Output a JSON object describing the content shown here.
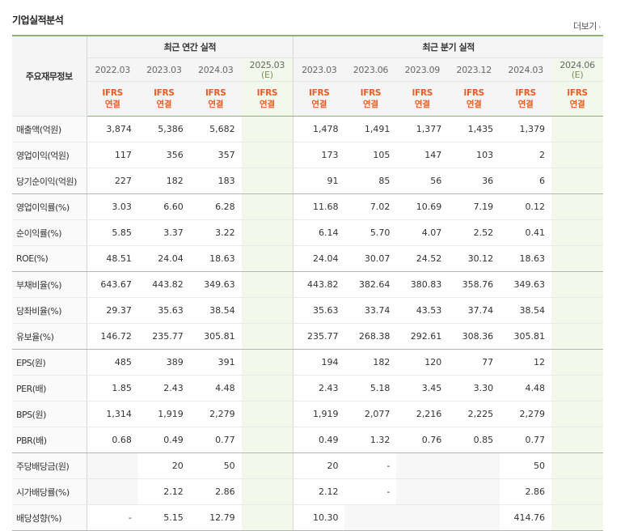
{
  "header": {
    "title": "기업실적분석",
    "more_label": "더보기",
    "more_chevron": "›"
  },
  "table": {
    "label_header": "주요재무정보",
    "groups": {
      "annual": "최근 연간 실적",
      "quarterly": "최근 분기 실적"
    },
    "periods": [
      {
        "date": "2022.03",
        "std1": "IFRS",
        "std2": "연결"
      },
      {
        "date": "2023.03",
        "std1": "IFRS",
        "std2": "연결"
      },
      {
        "date": "2024.03",
        "std1": "IFRS",
        "std2": "연결"
      },
      {
        "date": "2025.03",
        "est": "(E)",
        "std1": "IFRS",
        "std2": "연결"
      },
      {
        "date": "2023.03",
        "std1": "IFRS",
        "std2": "연결"
      },
      {
        "date": "2023.06",
        "std1": "IFRS",
        "std2": "연결"
      },
      {
        "date": "2023.09",
        "std1": "IFRS",
        "std2": "연결"
      },
      {
        "date": "2023.12",
        "std1": "IFRS",
        "std2": "연결"
      },
      {
        "date": "2024.03",
        "std1": "IFRS",
        "std2": "연결"
      },
      {
        "date": "2024.06",
        "est": "(E)",
        "std1": "IFRS",
        "std2": "연결"
      }
    ],
    "rows": [
      {
        "label": "매출액(억원)",
        "values": [
          "3,874",
          "5,386",
          "5,682",
          "",
          "1,478",
          "1,491",
          "1,377",
          "1,435",
          "1,379",
          ""
        ]
      },
      {
        "label": "영업이익(억원)",
        "values": [
          "117",
          "356",
          "357",
          "",
          "173",
          "105",
          "147",
          "103",
          "2",
          ""
        ]
      },
      {
        "label": "당기순이익(억원)",
        "values": [
          "227",
          "182",
          "183",
          "",
          "91",
          "85",
          "56",
          "36",
          "6",
          ""
        ]
      },
      {
        "label": "영업이익률(%)",
        "values": [
          "3.03",
          "6.60",
          "6.28",
          "",
          "11.68",
          "7.02",
          "10.69",
          "7.19",
          "0.12",
          ""
        ]
      },
      {
        "label": "순이익률(%)",
        "values": [
          "5.85",
          "3.37",
          "3.22",
          "",
          "6.14",
          "5.70",
          "4.07",
          "2.52",
          "0.41",
          ""
        ]
      },
      {
        "label": "ROE(%)",
        "values": [
          "48.51",
          "24.04",
          "18.63",
          "",
          "24.04",
          "30.07",
          "24.52",
          "30.12",
          "18.63",
          ""
        ]
      },
      {
        "label": "부채비율(%)",
        "values": [
          "643.67",
          "443.82",
          "349.63",
          "",
          "443.82",
          "382.64",
          "380.83",
          "358.76",
          "349.63",
          ""
        ]
      },
      {
        "label": "당좌비율(%)",
        "values": [
          "29.37",
          "35.63",
          "38.54",
          "",
          "35.63",
          "33.74",
          "43.53",
          "37.74",
          "38.54",
          ""
        ]
      },
      {
        "label": "유보율(%)",
        "values": [
          "146.72",
          "235.77",
          "305.81",
          "",
          "235.77",
          "268.38",
          "292.61",
          "308.36",
          "305.81",
          ""
        ]
      },
      {
        "label": "EPS(원)",
        "values": [
          "485",
          "389",
          "391",
          "",
          "194",
          "182",
          "120",
          "77",
          "12",
          ""
        ]
      },
      {
        "label": "PER(배)",
        "values": [
          "1.85",
          "2.43",
          "4.48",
          "",
          "2.43",
          "5.18",
          "3.45",
          "3.30",
          "4.48",
          ""
        ]
      },
      {
        "label": "BPS(원)",
        "values": [
          "1,314",
          "1,919",
          "2,279",
          "",
          "1,919",
          "2,077",
          "2,216",
          "2,225",
          "2,279",
          ""
        ]
      },
      {
        "label": "PBR(배)",
        "values": [
          "0.68",
          "0.49",
          "0.77",
          "",
          "0.49",
          "1.32",
          "0.76",
          "0.85",
          "0.77",
          ""
        ]
      },
      {
        "label": "주당배당금(원)",
        "values": [
          "",
          "20",
          "50",
          "",
          "20",
          "-",
          "",
          "",
          "50",
          ""
        ]
      },
      {
        "label": "시가배당률(%)",
        "values": [
          "",
          "2.12",
          "2.86",
          "",
          "2.12",
          "-",
          "",
          "",
          "2.86",
          ""
        ]
      },
      {
        "label": "배당성향(%)",
        "values": [
          "-",
          "5.15",
          "12.79",
          "",
          "10.30",
          "",
          "",
          "",
          "414.76",
          ""
        ]
      }
    ]
  }
}
